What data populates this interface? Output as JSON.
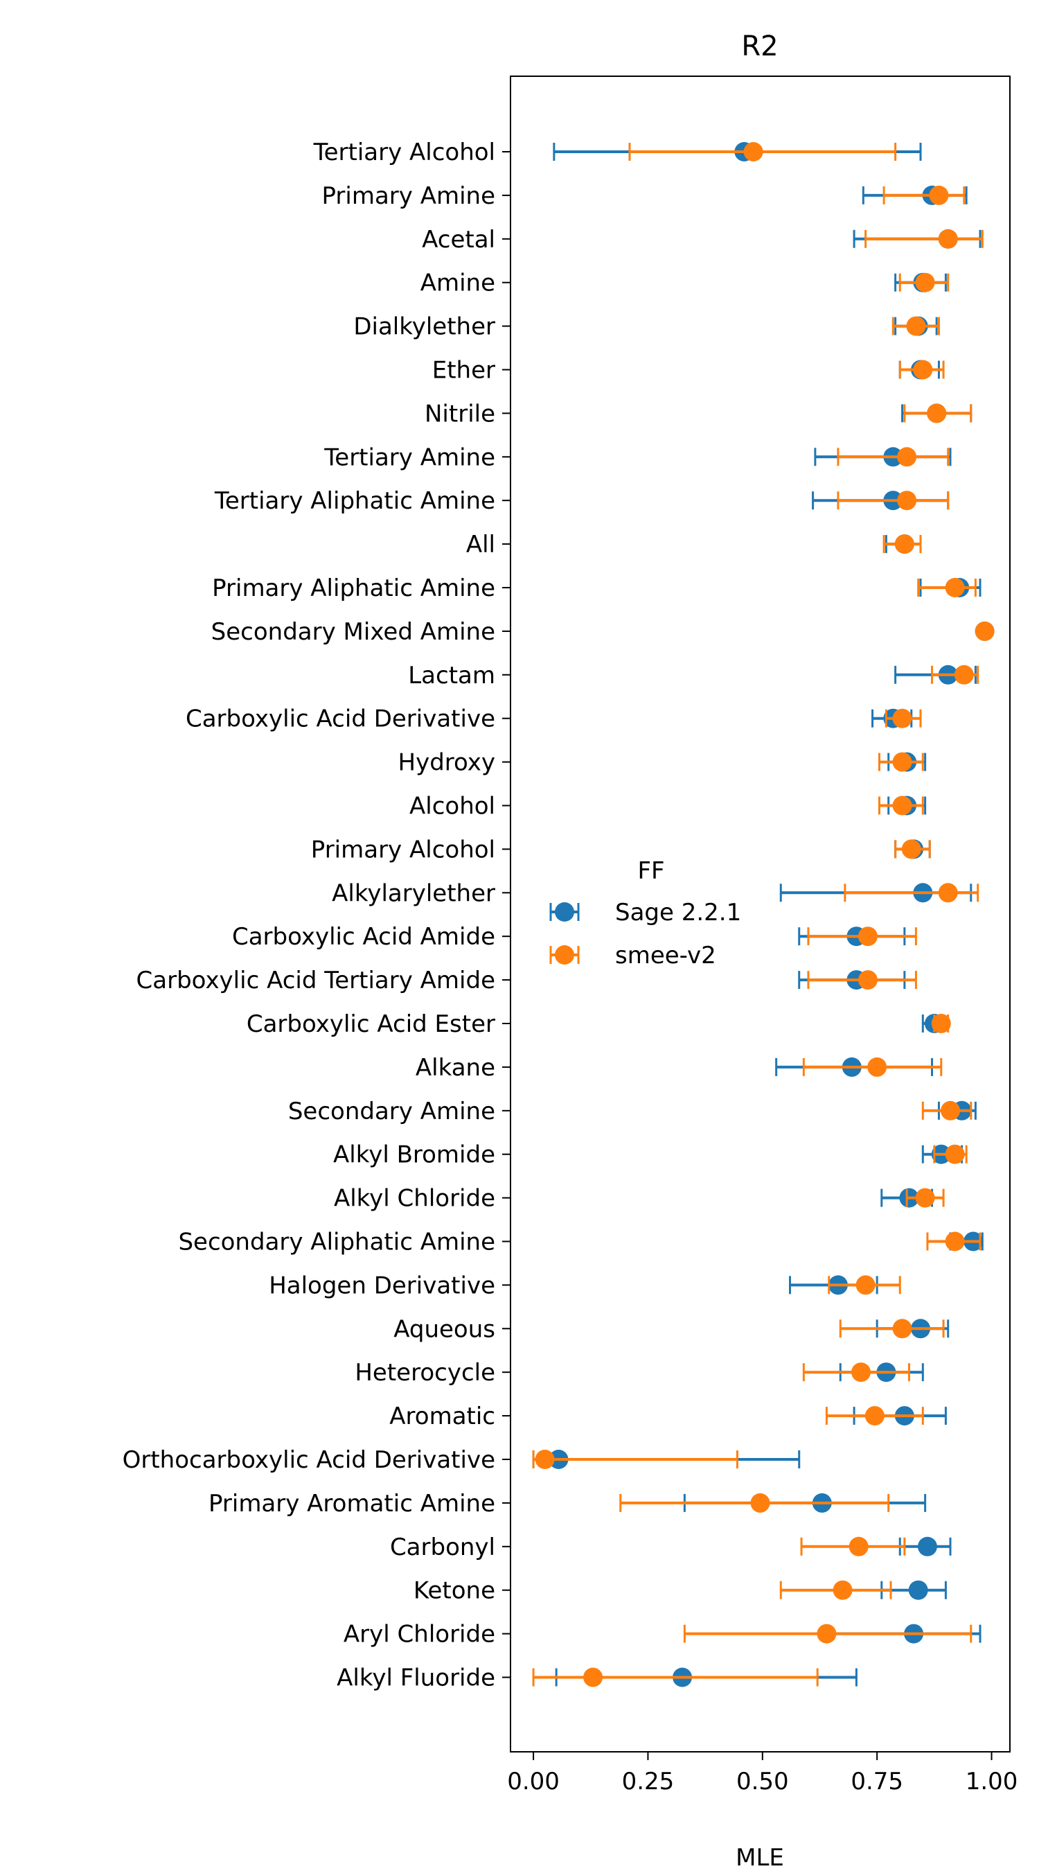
{
  "chart_data": {
    "type": "scatter",
    "title": "R2",
    "xlabel": "MLE",
    "ylabel": "",
    "xlim": [
      -0.05,
      1.04
    ],
    "xticks": [
      "0.00",
      "0.25",
      "0.50",
      "0.75",
      "1.00"
    ],
    "xtick_values": [
      0,
      0.25,
      0.5,
      0.75,
      1.0
    ],
    "grid": false,
    "legend": {
      "title": "FF",
      "placement": "center-left"
    },
    "categories": [
      "Tertiary Alcohol",
      "Primary Amine",
      "Acetal",
      "Amine",
      "Dialkylether",
      "Ether",
      "Nitrile",
      "Tertiary Amine",
      "Tertiary Aliphatic Amine",
      "All",
      "Primary Aliphatic Amine",
      "Secondary Mixed Amine",
      "Lactam",
      "Carboxylic Acid Derivative",
      "Hydroxy",
      "Alcohol",
      "Primary Alcohol",
      "Alkylarylether",
      "Carboxylic Acid Amide",
      "Carboxylic Acid Tertiary Amide",
      "Carboxylic Acid Ester",
      "Alkane",
      "Secondary Amine",
      "Alkyl Bromide",
      "Alkyl Chloride",
      "Secondary Aliphatic Amine",
      "Halogen Derivative",
      "Aqueous",
      "Heterocycle",
      "Aromatic",
      "Orthocarboxylic Acid Derivative",
      "Primary Aromatic Amine",
      "Carbonyl",
      "Ketone",
      "Aryl Chloride",
      "Alkyl Fluoride"
    ],
    "series": [
      {
        "name": "Sage 2.2.1",
        "color": "#1f77b4",
        "values": [
          0.46,
          0.87,
          0.905,
          0.85,
          0.84,
          0.845,
          0.88,
          0.785,
          0.785,
          0.81,
          0.93,
          0.985,
          0.905,
          0.785,
          0.815,
          0.815,
          0.83,
          0.85,
          0.705,
          0.705,
          0.875,
          0.695,
          0.935,
          0.89,
          0.82,
          0.96,
          0.665,
          0.845,
          0.77,
          0.81,
          0.055,
          0.63,
          0.86,
          0.84,
          0.83,
          0.325
        ],
        "lower": [
          0.045,
          0.72,
          0.7,
          0.79,
          0.79,
          0.8,
          0.805,
          0.615,
          0.61,
          0.77,
          0.845,
          0.98,
          0.79,
          0.74,
          0.775,
          0.775,
          0.79,
          0.54,
          0.58,
          0.58,
          0.85,
          0.53,
          0.885,
          0.85,
          0.76,
          0.91,
          0.56,
          0.75,
          0.67,
          0.7,
          0.0,
          0.33,
          0.8,
          0.76,
          0.64,
          0.05
        ],
        "upper": [
          0.845,
          0.945,
          0.975,
          0.9,
          0.88,
          0.885,
          0.955,
          0.91,
          0.905,
          0.845,
          0.975,
          0.99,
          0.965,
          0.825,
          0.855,
          0.855,
          0.865,
          0.955,
          0.81,
          0.81,
          0.895,
          0.87,
          0.965,
          0.935,
          0.87,
          0.98,
          0.75,
          0.905,
          0.85,
          0.9,
          0.58,
          0.855,
          0.91,
          0.9,
          0.975,
          0.705
        ]
      },
      {
        "name": "smee-v2",
        "color": "#ff7f0e",
        "values": [
          0.48,
          0.885,
          0.905,
          0.855,
          0.835,
          0.85,
          0.88,
          0.815,
          0.815,
          0.81,
          0.92,
          0.985,
          0.94,
          0.805,
          0.805,
          0.805,
          0.825,
          0.905,
          0.73,
          0.73,
          0.89,
          0.75,
          0.91,
          0.92,
          0.855,
          0.92,
          0.725,
          0.805,
          0.715,
          0.745,
          0.025,
          0.495,
          0.71,
          0.675,
          0.64,
          0.13
        ],
        "lower": [
          0.21,
          0.765,
          0.725,
          0.8,
          0.785,
          0.8,
          0.81,
          0.665,
          0.665,
          0.765,
          0.84,
          0.98,
          0.87,
          0.77,
          0.755,
          0.755,
          0.79,
          0.68,
          0.6,
          0.6,
          0.875,
          0.59,
          0.85,
          0.875,
          0.815,
          0.86,
          0.645,
          0.67,
          0.59,
          0.64,
          0.0,
          0.19,
          0.585,
          0.54,
          0.33,
          0.0
        ],
        "upper": [
          0.79,
          0.94,
          0.98,
          0.905,
          0.885,
          0.895,
          0.955,
          0.905,
          0.905,
          0.845,
          0.965,
          0.99,
          0.97,
          0.845,
          0.85,
          0.85,
          0.865,
          0.97,
          0.835,
          0.835,
          0.905,
          0.89,
          0.955,
          0.945,
          0.895,
          0.975,
          0.8,
          0.895,
          0.82,
          0.85,
          0.445,
          0.775,
          0.81,
          0.78,
          0.955,
          0.62
        ]
      }
    ]
  }
}
